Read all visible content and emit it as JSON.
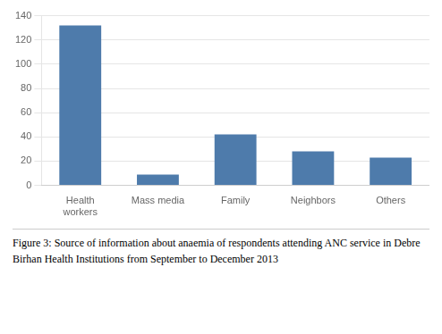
{
  "chart_data": {
    "type": "bar",
    "categories": [
      "Health\nworkers",
      "Mass media",
      "Family",
      "Neighbors",
      "Others"
    ],
    "values": [
      132,
      9,
      42,
      28,
      23
    ],
    "color": "#4e7bab",
    "ylim": [
      0,
      140
    ],
    "yticks": [
      0,
      20,
      40,
      60,
      80,
      100,
      120,
      140
    ],
    "grid": true,
    "caption": "Figure 3: Source of information about anaemia of respondents attending ANC service in Debre Birhan Health Institutions from September to December 2013"
  }
}
